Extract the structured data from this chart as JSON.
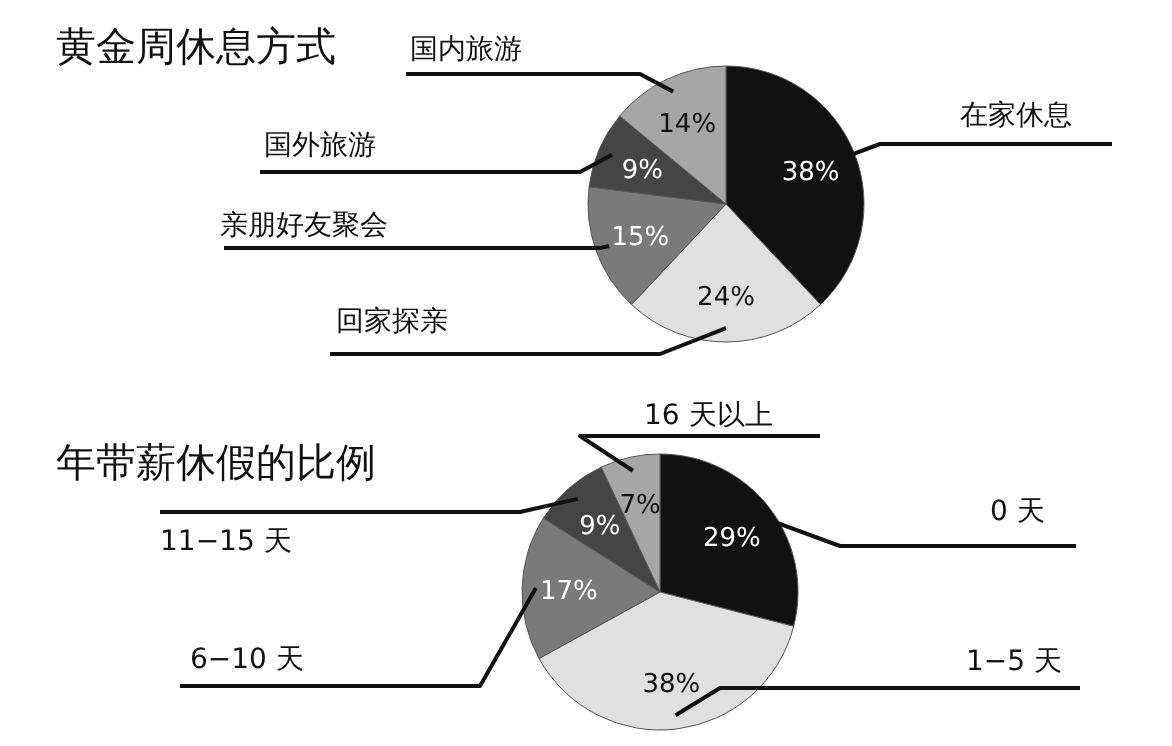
{
  "chart_data": [
    {
      "type": "pie",
      "title": "黄金周休息方式",
      "categories": [
        "在家休息",
        "回家探亲",
        "亲朋好友聚会",
        "国外旅游",
        "国内旅游"
      ],
      "values": [
        38,
        24,
        15,
        9,
        14
      ],
      "value_labels": [
        "38%",
        "24%",
        "15%",
        "9%",
        "14%"
      ],
      "colors": [
        "#111111",
        "#e0e0e0",
        "#7a7a7a",
        "#454545",
        "#a6a6a6"
      ]
    },
    {
      "type": "pie",
      "title": "年带薪休假的比例",
      "categories": [
        "0 天",
        "1−5 天",
        "6−10 天",
        "11−15 天",
        "16 天以上"
      ],
      "values": [
        29,
        38,
        17,
        9,
        7
      ],
      "value_labels": [
        "29%",
        "38%",
        "17%",
        "9%",
        "7%"
      ],
      "colors": [
        "#111111",
        "#e0e0e0",
        "#7a7a7a",
        "#454545",
        "#a6a6a6"
      ]
    }
  ]
}
